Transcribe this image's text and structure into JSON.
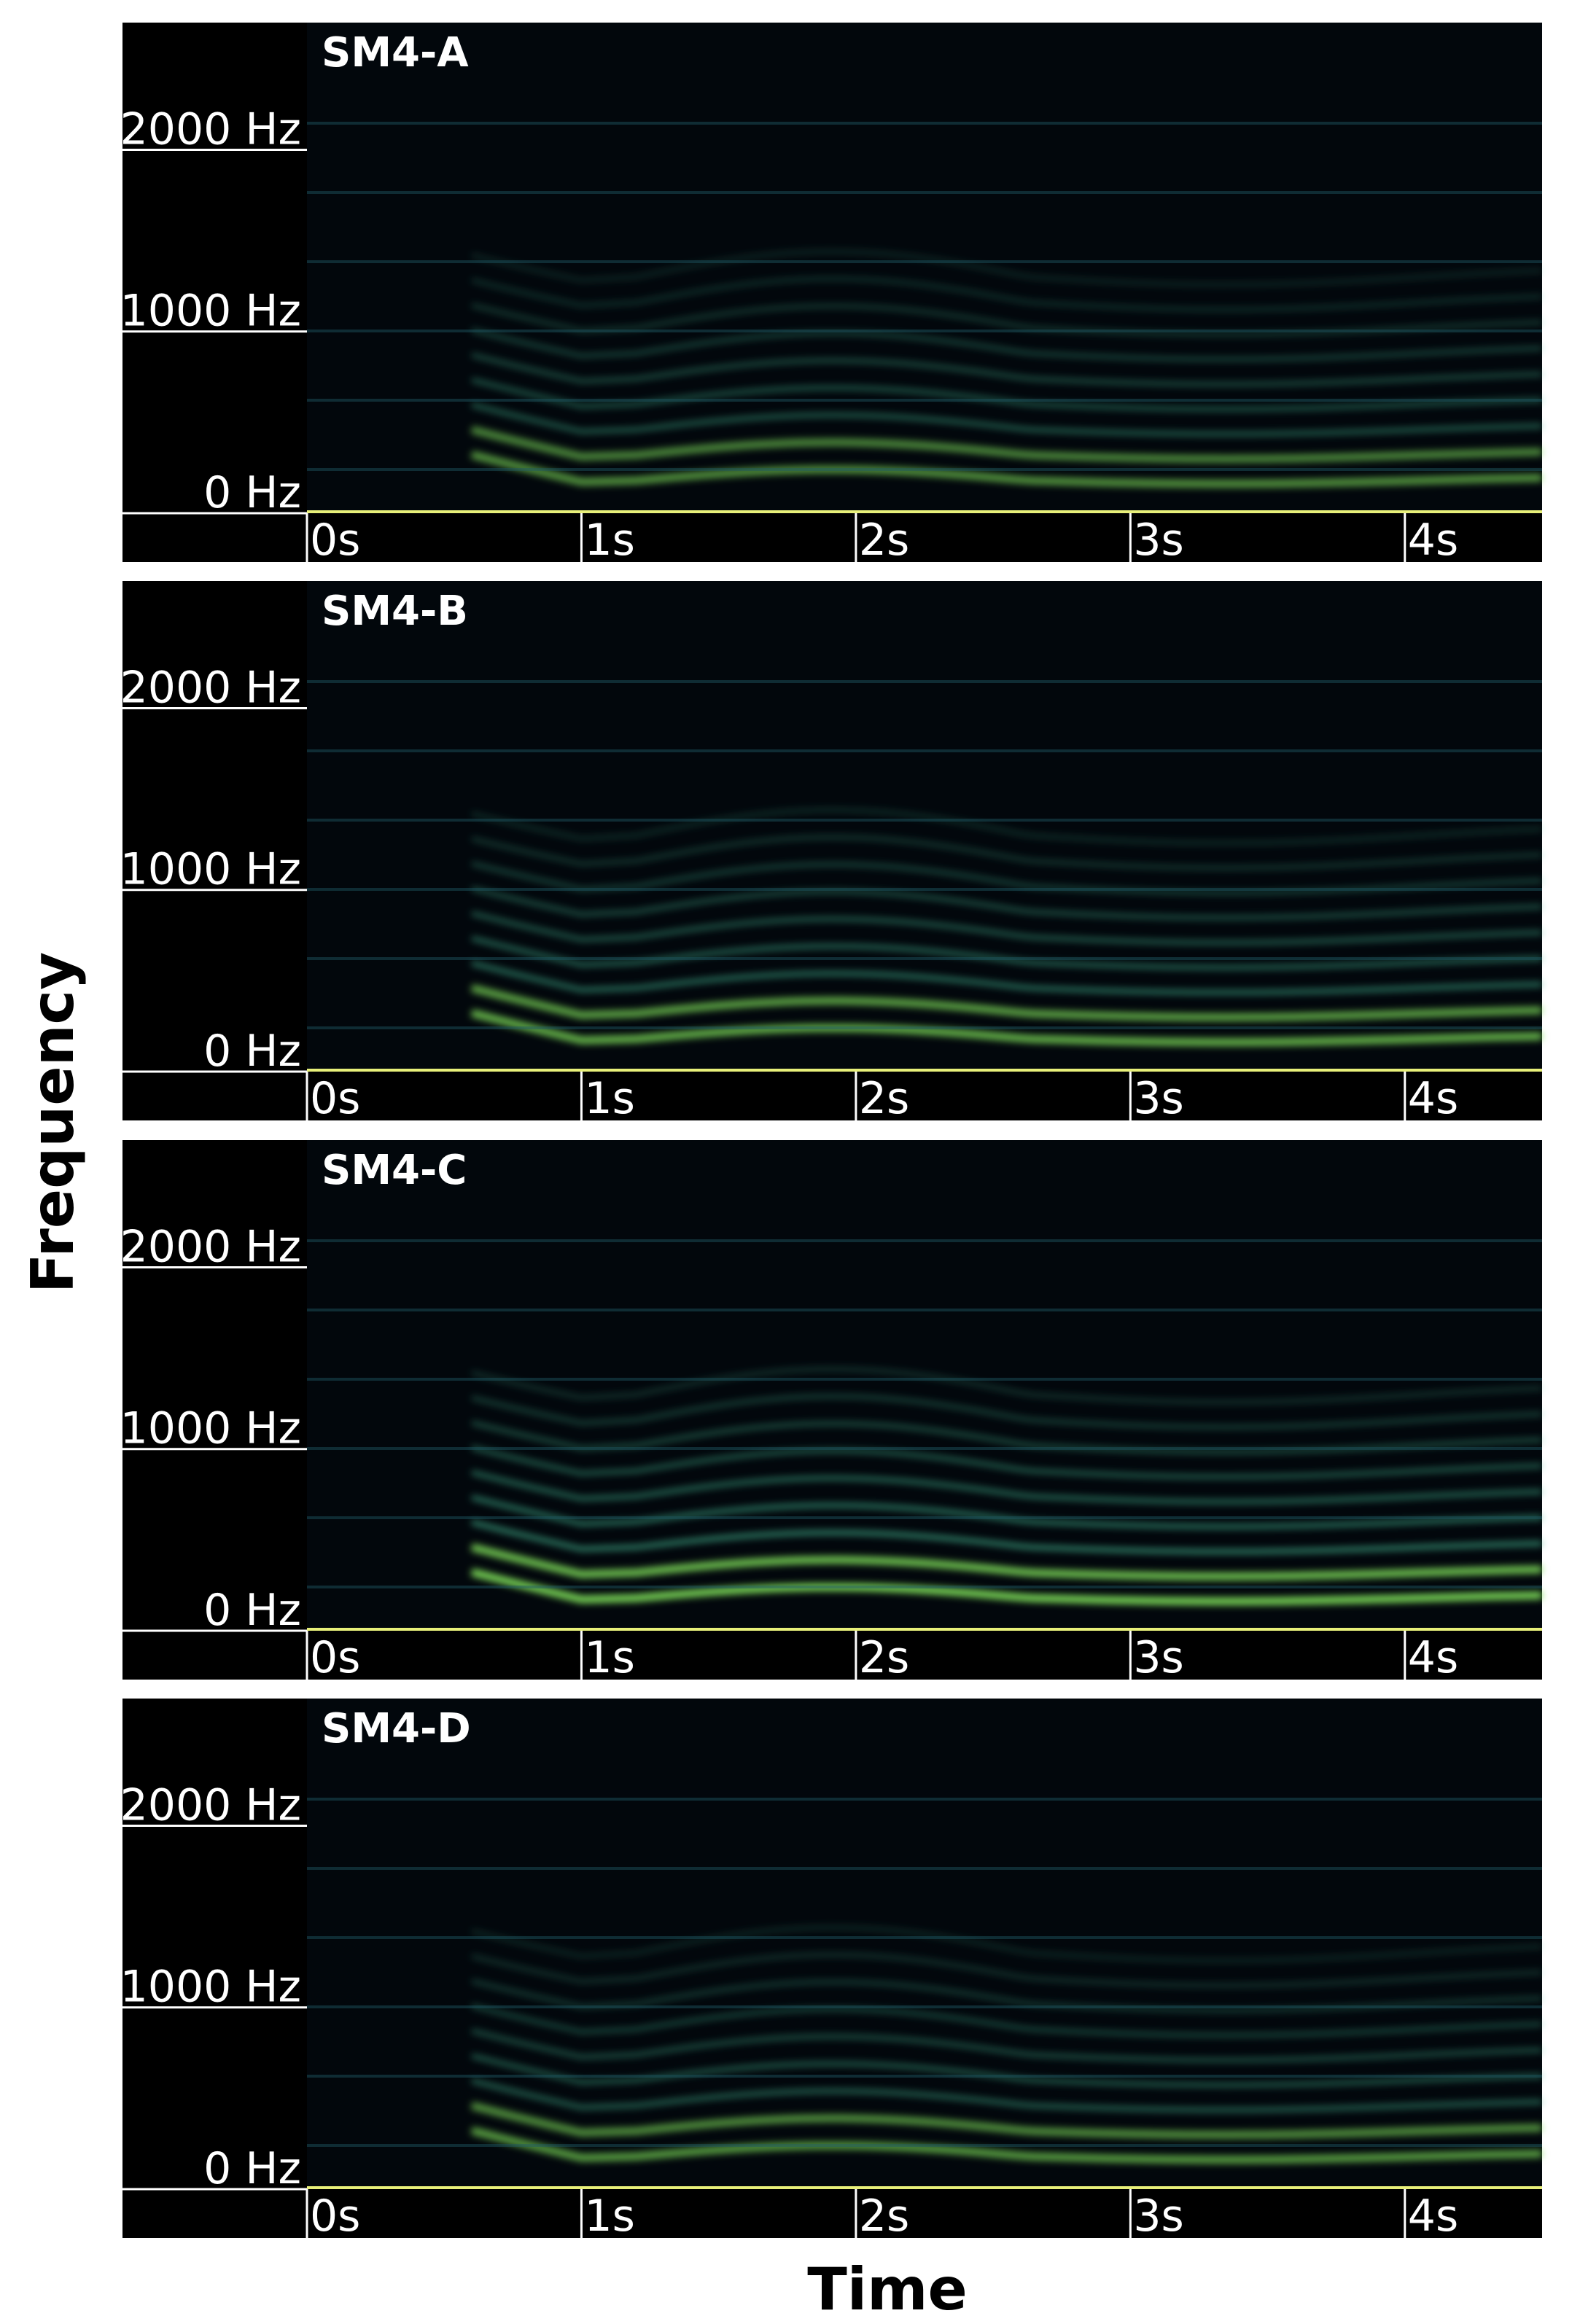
{
  "figure": {
    "ylabel": "Frequency",
    "xlabel": "Time"
  },
  "chart_data": [
    {
      "type": "spectrogram",
      "title": "SM4-A",
      "xlim": [
        0,
        4.5
      ],
      "ylim": [
        0,
        2700
      ],
      "xticks": [
        {
          "value": 0,
          "label": "0s"
        },
        {
          "value": 1,
          "label": "1s"
        },
        {
          "value": 2,
          "label": "2s"
        },
        {
          "value": 3,
          "label": "3s"
        },
        {
          "value": 4,
          "label": "4s"
        }
      ],
      "yticks": [
        {
          "value": 0,
          "label": "0 Hz"
        },
        {
          "value": 1000,
          "label": "1000 Hz"
        },
        {
          "value": 2000,
          "label": "2000 Hz"
        }
      ]
    },
    {
      "type": "spectrogram",
      "title": "SM4-B",
      "xlim": [
        0,
        4.5
      ],
      "ylim": [
        0,
        2700
      ],
      "xticks": [
        {
          "value": 0,
          "label": "0s"
        },
        {
          "value": 1,
          "label": "1s"
        },
        {
          "value": 2,
          "label": "2s"
        },
        {
          "value": 3,
          "label": "3s"
        },
        {
          "value": 4,
          "label": "4s"
        }
      ],
      "yticks": [
        {
          "value": 0,
          "label": "0 Hz"
        },
        {
          "value": 1000,
          "label": "1000 Hz"
        },
        {
          "value": 2000,
          "label": "2000 Hz"
        }
      ]
    },
    {
      "type": "spectrogram",
      "title": "SM4-C",
      "xlim": [
        0,
        4.5
      ],
      "ylim": [
        0,
        2700
      ],
      "xticks": [
        {
          "value": 0,
          "label": "0s"
        },
        {
          "value": 1,
          "label": "1s"
        },
        {
          "value": 2,
          "label": "2s"
        },
        {
          "value": 3,
          "label": "3s"
        },
        {
          "value": 4,
          "label": "4s"
        }
      ],
      "yticks": [
        {
          "value": 0,
          "label": "0 Hz"
        },
        {
          "value": 1000,
          "label": "1000 Hz"
        },
        {
          "value": 2000,
          "label": "2000 Hz"
        }
      ]
    },
    {
      "type": "spectrogram",
      "title": "SM4-D",
      "xlim": [
        0,
        4.5
      ],
      "ylim": [
        0,
        2700
      ],
      "xticks": [
        {
          "value": 0,
          "label": "0s"
        },
        {
          "value": 1,
          "label": "1s"
        },
        {
          "value": 2,
          "label": "2s"
        },
        {
          "value": 3,
          "label": "3s"
        },
        {
          "value": 4,
          "label": "4s"
        }
      ],
      "yticks": [
        {
          "value": 0,
          "label": "0 Hz"
        },
        {
          "value": 1000,
          "label": "1000 Hz"
        },
        {
          "value": 2000,
          "label": "2000 Hz"
        }
      ]
    }
  ]
}
